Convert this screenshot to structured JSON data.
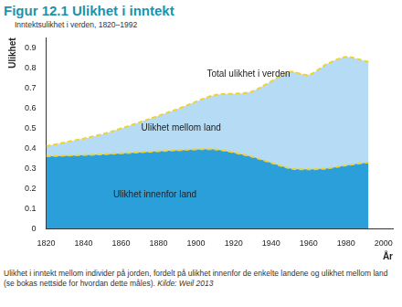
{
  "chart_data": {
    "type": "area",
    "title": "Figur 12.1 Ulikhet i inntekt",
    "subtitle": "Inntektsulikhet i verden, 1820–1992",
    "y_label": "Ulikhet",
    "x_label": "År",
    "x": [
      1820,
      1850,
      1870,
      1890,
      1910,
      1929,
      1950,
      1960,
      1970,
      1980,
      1992
    ],
    "series": [
      {
        "name": "Ulikhet innenfor land",
        "color": "#2b9fd9",
        "line_style": "dashed",
        "values": [
          0.36,
          0.37,
          0.38,
          0.39,
          0.395,
          0.36,
          0.3,
          0.295,
          0.3,
          0.315,
          0.33
        ]
      },
      {
        "name": "Ulikhet mellom land",
        "color": "#b5dcf4",
        "line_style": "dashed",
        "values": [
          0.05,
          0.1,
          0.15,
          0.205,
          0.27,
          0.32,
          0.48,
          0.47,
          0.52,
          0.54,
          0.5
        ]
      }
    ],
    "stacked": true,
    "grid": false,
    "xlim": [
      1820,
      2005
    ],
    "xticks": [
      1820,
      1840,
      1860,
      1880,
      1900,
      1920,
      1940,
      1960,
      1980,
      2000
    ],
    "ylim": [
      0,
      0.95
    ],
    "yticks": [
      0,
      0.1,
      0.2,
      0.3,
      0.4,
      0.5,
      0.6,
      0.7,
      0.8,
      0.9
    ],
    "annotations": [
      {
        "text": "Total ulikhet i verden",
        "x": 1928,
        "y": 0.77
      },
      {
        "text": "Ulikhet mellom land",
        "x": 1892,
        "y": 0.5
      },
      {
        "text": "Ulikhet innenfor land",
        "x": 1878,
        "y": 0.17
      }
    ],
    "caption": "Ulikhet i inntekt mellom individer på jorden, fordelt på ulikhet innenfor de enkelte landene og ulikhet mellom land (se bokas nettside for hvordan dette måles).",
    "source": "Kilde: Weil 2013"
  }
}
